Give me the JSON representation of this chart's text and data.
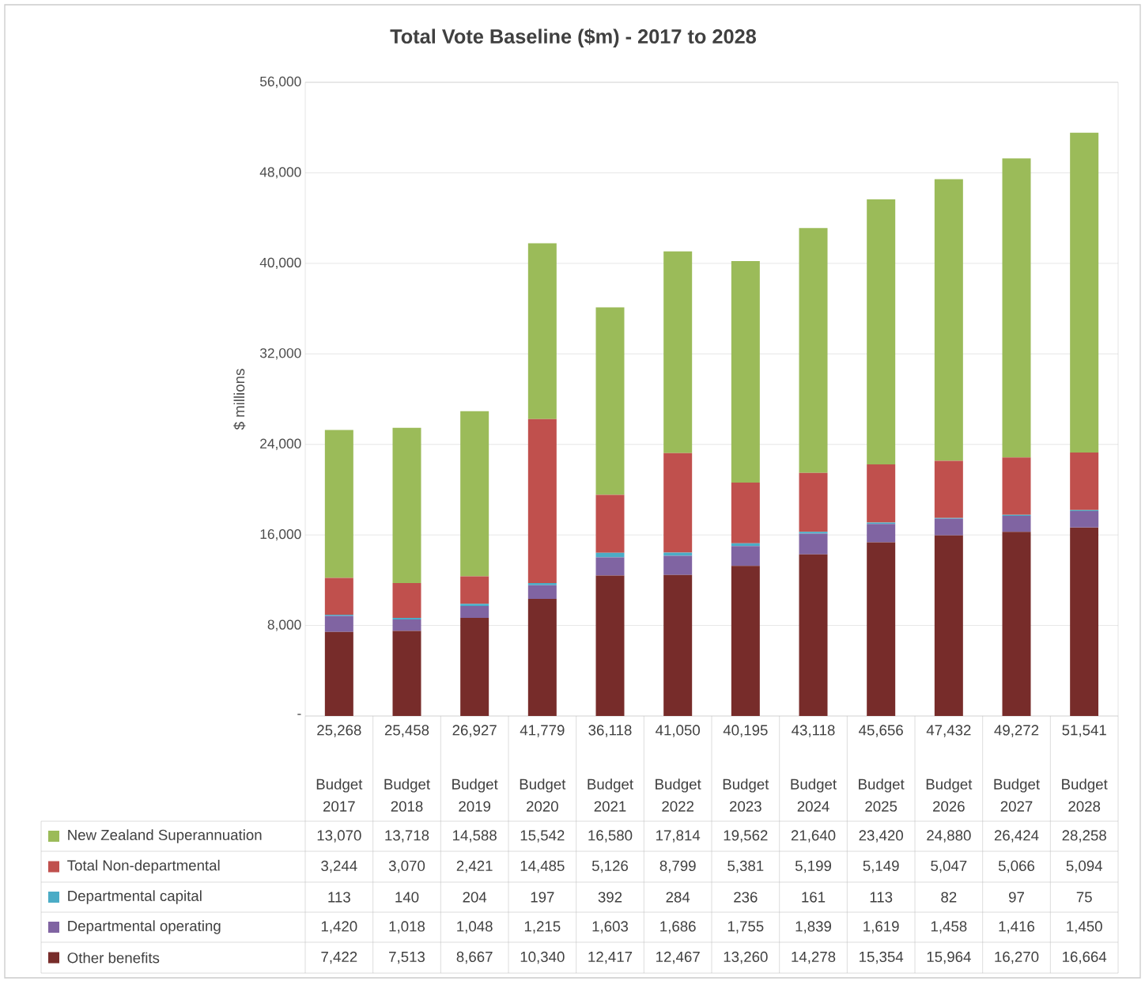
{
  "chart_data": {
    "type": "bar",
    "title": "Total Vote Baseline ($m) - 2017 to 2028",
    "ylabel": "$ millions",
    "categories": [
      "Budget 2017",
      "Budget 2018",
      "Budget 2019",
      "Budget 2020",
      "Budget 2021",
      "Budget 2022",
      "Budget 2023",
      "Budget 2024",
      "Budget 2025",
      "Budget 2026",
      "Budget 2027",
      "Budget 2028"
    ],
    "stacked": true,
    "series": [
      {
        "name": "Other benefits",
        "color": "#772c2a",
        "values": [
          7422,
          7513,
          8667,
          10340,
          12417,
          12467,
          13260,
          14278,
          15354,
          15964,
          16270,
          16664
        ],
        "value_labels": [
          "7,422",
          "7,513",
          "8,667",
          "10,340",
          "12,417",
          "12,467",
          "13,260",
          "14,278",
          "15,354",
          "15,964",
          "16,270",
          "16,664"
        ]
      },
      {
        "name": "Departmental operating",
        "color": "#8064a2",
        "values": [
          1420,
          1018,
          1048,
          1215,
          1603,
          1686,
          1755,
          1839,
          1619,
          1458,
          1416,
          1450
        ],
        "value_labels": [
          "1,420",
          "1,018",
          "1,048",
          "1,215",
          "1,603",
          "1,686",
          "1,755",
          "1,839",
          "1,619",
          "1,458",
          "1,416",
          "1,450"
        ]
      },
      {
        "name": "Departmental capital",
        "color": "#4bacc6",
        "values": [
          113,
          140,
          204,
          197,
          392,
          284,
          236,
          161,
          113,
          82,
          97,
          75
        ],
        "value_labels": [
          "113",
          "140",
          "204",
          "197",
          "392",
          "284",
          "236",
          "161",
          "113",
          "82",
          "97",
          "75"
        ]
      },
      {
        "name": "Total Non-departmental",
        "color": "#c0504d",
        "values": [
          3244,
          3070,
          2421,
          14485,
          5126,
          8799,
          5381,
          5199,
          5149,
          5047,
          5066,
          5094
        ],
        "value_labels": [
          "3,244",
          "3,070",
          "2,421",
          "14,485",
          "5,126",
          "8,799",
          "5,381",
          "5,199",
          "5,149",
          "5,047",
          "5,066",
          "5,094"
        ]
      },
      {
        "name": "New Zealand Superannuation",
        "color": "#9bbb59",
        "values": [
          13070,
          13718,
          14588,
          15542,
          16580,
          17814,
          19562,
          21640,
          23420,
          24880,
          26424,
          28258
        ],
        "value_labels": [
          "13,070",
          "13,718",
          "14,588",
          "15,542",
          "16,580",
          "17,814",
          "19,562",
          "21,640",
          "23,420",
          "24,880",
          "26,424",
          "28,258"
        ]
      }
    ],
    "totals": [
      "25,268",
      "25,458",
      "26,927",
      "41,779",
      "36,118",
      "41,050",
      "40,195",
      "43,118",
      "45,656",
      "47,432",
      "49,272",
      "51,541"
    ],
    "ylim": [
      0,
      56000
    ],
    "yticks": [
      {
        "value": 0,
        "label": "-"
      },
      {
        "value": 8000,
        "label": "8,000"
      },
      {
        "value": 16000,
        "label": "16,000"
      },
      {
        "value": 24000,
        "label": "24,000"
      },
      {
        "value": 32000,
        "label": "32,000"
      },
      {
        "value": 40000,
        "label": "40,000"
      },
      {
        "value": 48000,
        "label": "48,000"
      },
      {
        "value": 56000,
        "label": "56,000"
      }
    ],
    "grid": "y",
    "legend": "bottom left"
  }
}
